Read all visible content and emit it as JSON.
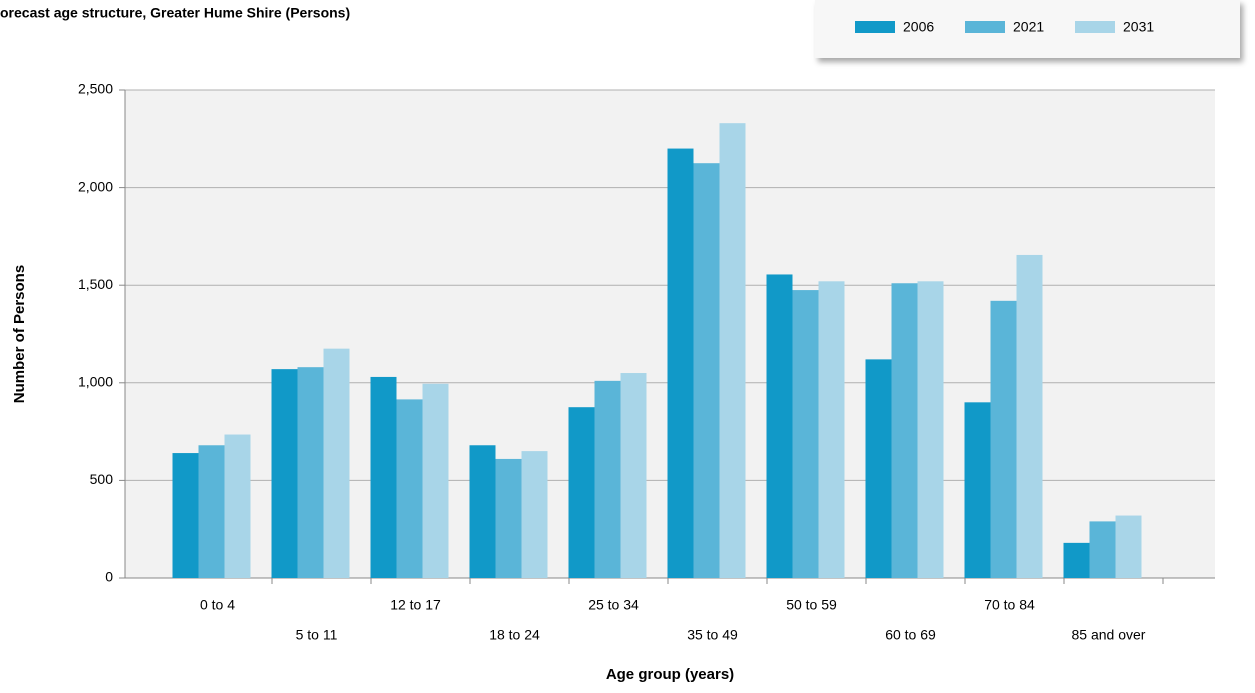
{
  "chart_data": {
    "type": "bar",
    "title": "orecast age structure, Greater Hume Shire (Persons)",
    "x_label": "Age group (years)",
    "y_label": "Number of Persons",
    "categories": [
      "0 to 4",
      "5 to 11",
      "12 to 17",
      "18 to 24",
      "25 to 34",
      "35 to 49",
      "50 to 59",
      "60 to 69",
      "70 to 84",
      "85 and over"
    ],
    "series": [
      {
        "name": "2006",
        "color": "#1199c8",
        "values": [
          640,
          1070,
          1030,
          680,
          875,
          2200,
          1555,
          1120,
          900,
          180
        ]
      },
      {
        "name": "2021",
        "color": "#5ab5d8",
        "values": [
          680,
          1080,
          915,
          610,
          1010,
          2125,
          1475,
          1510,
          1420,
          290
        ]
      },
      {
        "name": "2031",
        "color": "#a8d5e8",
        "values": [
          735,
          1175,
          995,
          650,
          1050,
          2330,
          1520,
          1520,
          1655,
          320
        ]
      }
    ],
    "ylim": [
      0,
      2500
    ],
    "yticks": [
      0,
      500,
      {
        "value": 1000,
        "label": "1,000"
      },
      {
        "value": 1500,
        "label": "1,500"
      },
      {
        "value": 2000,
        "label": "2,000"
      },
      {
        "value": 2500,
        "label": "2,500"
      }
    ],
    "grid": true,
    "legend": "top-right"
  }
}
